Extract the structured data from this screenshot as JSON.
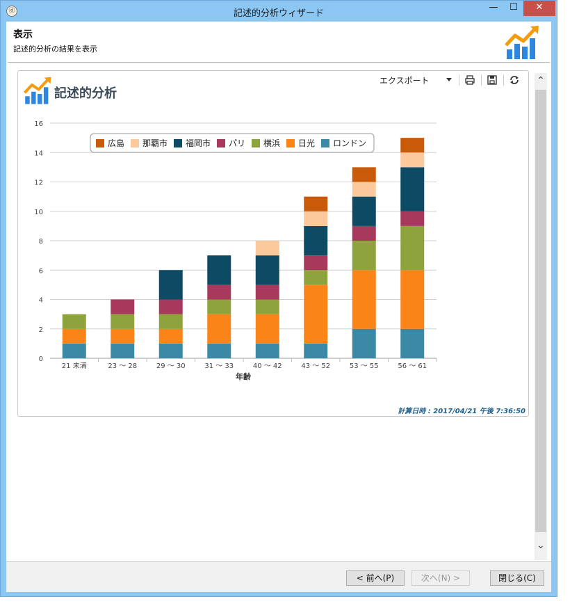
{
  "window": {
    "title": "記述的分析ウィザード",
    "app_icon_glyph": "ⓓ",
    "minimize_glyph": "—",
    "maximize_glyph": "☐",
    "close_glyph": "✕"
  },
  "header": {
    "title": "表示",
    "subtitle": "記述的分析の結果を表示"
  },
  "panel": {
    "title": "記述的分析",
    "toolbar": {
      "export_label": "エクスポート",
      "icons": [
        "print-icon",
        "save-icon",
        "refresh-icon"
      ]
    },
    "calc_time": "計算日時 : 2017/04/21 午後 7:36:50"
  },
  "scrollbar": {
    "up_glyph": "⌃",
    "down_glyph": "⌄"
  },
  "footer": {
    "prev_label": "< 前へ(P)",
    "next_label": "次へ(N) >",
    "close_label": "閉じる(C)"
  },
  "chart_data": {
    "type": "bar",
    "stacked": true,
    "xlabel": "年齢",
    "ylabel": "",
    "ylim": [
      0,
      16
    ],
    "yticks": [
      0,
      2,
      4,
      6,
      8,
      10,
      12,
      14,
      16
    ],
    "categories": [
      "21 未満",
      "23 ～ 28",
      "29 ～ 30",
      "31 ～ 33",
      "40 ～ 42",
      "43 ～ 52",
      "53 ～ 55",
      "56 ～ 61"
    ],
    "series": [
      {
        "name": "ロンドン",
        "color": "#3b89a5",
        "values": [
          1,
          1,
          1,
          1,
          1,
          1,
          2,
          2
        ]
      },
      {
        "name": "日光",
        "color": "#fb8418",
        "values": [
          1,
          1,
          1,
          2,
          2,
          4,
          4,
          4
        ]
      },
      {
        "name": "横浜",
        "color": "#8ea33c",
        "values": [
          1,
          1,
          1,
          1,
          1,
          1,
          2,
          3
        ]
      },
      {
        "name": "パリ",
        "color": "#a73a5c",
        "values": [
          0,
          1,
          1,
          1,
          1,
          1,
          1,
          1
        ]
      },
      {
        "name": "福岡市",
        "color": "#0d4a63",
        "values": [
          0,
          0,
          2,
          2,
          2,
          2,
          2,
          3
        ]
      },
      {
        "name": "那覇市",
        "color": "#fcc99c",
        "values": [
          0,
          0,
          0,
          0,
          1,
          1,
          1,
          1
        ]
      },
      {
        "name": "広島",
        "color": "#c85a0a",
        "values": [
          0,
          0,
          0,
          0,
          0,
          1,
          1,
          1
        ]
      }
    ],
    "legend_order": [
      "広島",
      "那覇市",
      "福岡市",
      "パリ",
      "横浜",
      "日光",
      "ロンドン"
    ],
    "legend_position": "top-center",
    "grid": true
  }
}
